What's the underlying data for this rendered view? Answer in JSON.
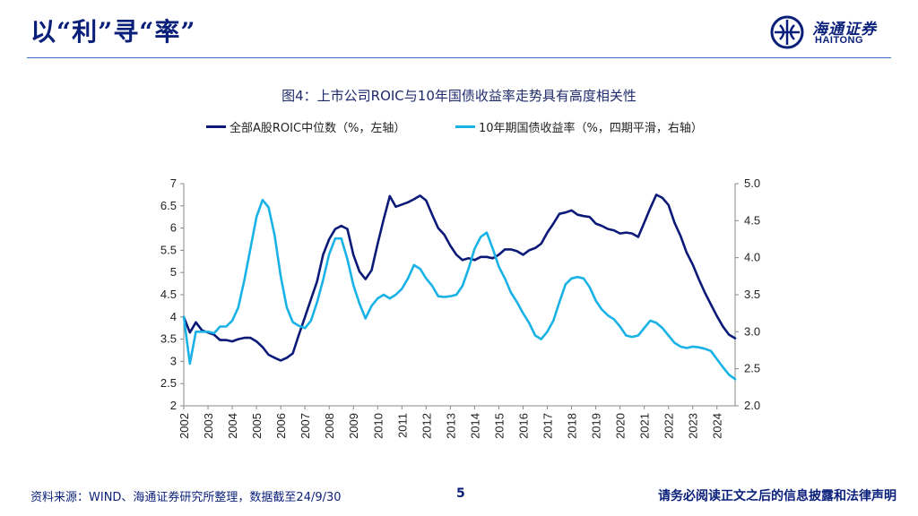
{
  "header": {
    "title": "以“利”寻“率”"
  },
  "logo": {
    "cn": "海通证券",
    "en": "HAITONG"
  },
  "footer": {
    "source": "资料来源：WIND、海通证券研究所整理，数据截至24/9/30",
    "page": "5",
    "disclaimer": "请务必阅读正文之后的信息披露和法律声明"
  },
  "colors": {
    "brand": "#0a1f7a",
    "roic": "#0b1a78",
    "bond": "#19b2e6"
  },
  "chart_data": {
    "type": "line",
    "title": "图4：上市公司ROIC与10年国债收益率走势具有高度相关性",
    "x_range": [
      2002.0,
      2024.75
    ],
    "x_tick_labels": [
      "2002",
      "2003",
      "2004",
      "2005",
      "2006",
      "2007",
      "2008",
      "2009",
      "2010",
      "2011",
      "2012",
      "2013",
      "2014",
      "2015",
      "2016",
      "2017",
      "2018",
      "2019",
      "2020",
      "2021",
      "2022",
      "2023",
      "2024"
    ],
    "y_left": {
      "range": [
        2,
        7
      ],
      "ticks": [
        "2",
        "2.5",
        "3",
        "3.5",
        "4",
        "4.5",
        "5",
        "5.5",
        "6",
        "6.5",
        "7"
      ]
    },
    "y_right": {
      "range": [
        2.0,
        5.0
      ],
      "ticks": [
        "2.0",
        "2.5",
        "3.0",
        "3.5",
        "4.0",
        "4.5",
        "5.0"
      ]
    },
    "grid": false,
    "legend_position": "top",
    "series": [
      {
        "name": "全部A股ROIC中位数（%，左轴）",
        "axis": "left",
        "points": [
          [
            2002.0,
            4.0
          ],
          [
            2002.25,
            3.65
          ],
          [
            2002.5,
            3.88
          ],
          [
            2002.75,
            3.7
          ],
          [
            2003.0,
            3.65
          ],
          [
            2003.25,
            3.6
          ],
          [
            2003.5,
            3.48
          ],
          [
            2003.75,
            3.48
          ],
          [
            2004.0,
            3.45
          ],
          [
            2004.25,
            3.5
          ],
          [
            2004.5,
            3.53
          ],
          [
            2004.75,
            3.53
          ],
          [
            2005.0,
            3.45
          ],
          [
            2005.25,
            3.32
          ],
          [
            2005.5,
            3.15
          ],
          [
            2005.75,
            3.08
          ],
          [
            2006.0,
            3.02
          ],
          [
            2006.25,
            3.08
          ],
          [
            2006.5,
            3.18
          ],
          [
            2006.75,
            3.6
          ],
          [
            2007.0,
            4.0
          ],
          [
            2007.25,
            4.4
          ],
          [
            2007.5,
            4.8
          ],
          [
            2007.75,
            5.4
          ],
          [
            2008.0,
            5.75
          ],
          [
            2008.25,
            5.98
          ],
          [
            2008.5,
            6.05
          ],
          [
            2008.75,
            5.98
          ],
          [
            2009.0,
            5.4
          ],
          [
            2009.25,
            5.02
          ],
          [
            2009.5,
            4.85
          ],
          [
            2009.75,
            5.05
          ],
          [
            2010.0,
            5.65
          ],
          [
            2010.25,
            6.2
          ],
          [
            2010.5,
            6.72
          ],
          [
            2010.75,
            6.48
          ],
          [
            2011.0,
            6.53
          ],
          [
            2011.25,
            6.58
          ],
          [
            2011.5,
            6.65
          ],
          [
            2011.75,
            6.73
          ],
          [
            2012.0,
            6.62
          ],
          [
            2012.25,
            6.3
          ],
          [
            2012.5,
            6.0
          ],
          [
            2012.75,
            5.85
          ],
          [
            2013.0,
            5.6
          ],
          [
            2013.25,
            5.4
          ],
          [
            2013.5,
            5.28
          ],
          [
            2013.75,
            5.32
          ],
          [
            2014.0,
            5.28
          ],
          [
            2014.25,
            5.35
          ],
          [
            2014.5,
            5.35
          ],
          [
            2014.75,
            5.32
          ],
          [
            2015.0,
            5.4
          ],
          [
            2015.25,
            5.52
          ],
          [
            2015.5,
            5.52
          ],
          [
            2015.75,
            5.48
          ],
          [
            2016.0,
            5.4
          ],
          [
            2016.25,
            5.5
          ],
          [
            2016.5,
            5.55
          ],
          [
            2016.75,
            5.65
          ],
          [
            2017.0,
            5.9
          ],
          [
            2017.25,
            6.1
          ],
          [
            2017.5,
            6.32
          ],
          [
            2017.75,
            6.35
          ],
          [
            2018.0,
            6.4
          ],
          [
            2018.25,
            6.3
          ],
          [
            2018.5,
            6.27
          ],
          [
            2018.75,
            6.25
          ],
          [
            2019.0,
            6.1
          ],
          [
            2019.25,
            6.05
          ],
          [
            2019.5,
            5.98
          ],
          [
            2019.75,
            5.95
          ],
          [
            2020.0,
            5.88
          ],
          [
            2020.25,
            5.9
          ],
          [
            2020.5,
            5.88
          ],
          [
            2020.75,
            5.8
          ],
          [
            2021.0,
            6.12
          ],
          [
            2021.25,
            6.45
          ],
          [
            2021.5,
            6.75
          ],
          [
            2021.75,
            6.68
          ],
          [
            2022.0,
            6.52
          ],
          [
            2022.25,
            6.12
          ],
          [
            2022.5,
            5.82
          ],
          [
            2022.75,
            5.45
          ],
          [
            2023.0,
            5.18
          ],
          [
            2023.25,
            4.85
          ],
          [
            2023.5,
            4.55
          ],
          [
            2023.75,
            4.28
          ],
          [
            2024.0,
            4.02
          ],
          [
            2024.25,
            3.78
          ],
          [
            2024.5,
            3.6
          ],
          [
            2024.75,
            3.52
          ]
        ]
      },
      {
        "name": "10年期国债收益率（%，四期平滑，右轴）",
        "axis": "right",
        "points": [
          [
            2002.0,
            3.2
          ],
          [
            2002.25,
            2.57
          ],
          [
            2002.5,
            3.0
          ],
          [
            2002.75,
            3.0
          ],
          [
            2003.0,
            3.0
          ],
          [
            2003.25,
            2.98
          ],
          [
            2003.5,
            3.07
          ],
          [
            2003.75,
            3.07
          ],
          [
            2004.0,
            3.15
          ],
          [
            2004.25,
            3.33
          ],
          [
            2004.5,
            3.7
          ],
          [
            2004.75,
            4.12
          ],
          [
            2005.0,
            4.55
          ],
          [
            2005.25,
            4.78
          ],
          [
            2005.5,
            4.68
          ],
          [
            2005.75,
            4.3
          ],
          [
            2006.0,
            3.75
          ],
          [
            2006.25,
            3.33
          ],
          [
            2006.5,
            3.13
          ],
          [
            2006.75,
            3.08
          ],
          [
            2007.0,
            3.05
          ],
          [
            2007.25,
            3.15
          ],
          [
            2007.5,
            3.4
          ],
          [
            2007.75,
            3.7
          ],
          [
            2008.0,
            4.05
          ],
          [
            2008.25,
            4.26
          ],
          [
            2008.5,
            4.26
          ],
          [
            2008.75,
            3.98
          ],
          [
            2009.0,
            3.63
          ],
          [
            2009.25,
            3.38
          ],
          [
            2009.5,
            3.18
          ],
          [
            2009.75,
            3.35
          ],
          [
            2010.0,
            3.45
          ],
          [
            2010.25,
            3.5
          ],
          [
            2010.5,
            3.45
          ],
          [
            2010.75,
            3.5
          ],
          [
            2011.0,
            3.58
          ],
          [
            2011.25,
            3.72
          ],
          [
            2011.5,
            3.9
          ],
          [
            2011.75,
            3.85
          ],
          [
            2012.0,
            3.72
          ],
          [
            2012.25,
            3.62
          ],
          [
            2012.5,
            3.48
          ],
          [
            2012.75,
            3.47
          ],
          [
            2013.0,
            3.48
          ],
          [
            2013.25,
            3.5
          ],
          [
            2013.5,
            3.62
          ],
          [
            2013.75,
            3.85
          ],
          [
            2014.0,
            4.12
          ],
          [
            2014.25,
            4.28
          ],
          [
            2014.5,
            4.34
          ],
          [
            2014.75,
            4.12
          ],
          [
            2015.0,
            3.88
          ],
          [
            2015.25,
            3.72
          ],
          [
            2015.5,
            3.53
          ],
          [
            2015.75,
            3.4
          ],
          [
            2016.0,
            3.25
          ],
          [
            2016.25,
            3.12
          ],
          [
            2016.5,
            2.95
          ],
          [
            2016.75,
            2.9
          ],
          [
            2017.0,
            3.0
          ],
          [
            2017.25,
            3.15
          ],
          [
            2017.5,
            3.4
          ],
          [
            2017.75,
            3.64
          ],
          [
            2018.0,
            3.72
          ],
          [
            2018.25,
            3.74
          ],
          [
            2018.5,
            3.72
          ],
          [
            2018.75,
            3.6
          ],
          [
            2019.0,
            3.42
          ],
          [
            2019.25,
            3.3
          ],
          [
            2019.5,
            3.22
          ],
          [
            2019.75,
            3.17
          ],
          [
            2020.0,
            3.07
          ],
          [
            2020.25,
            2.95
          ],
          [
            2020.5,
            2.93
          ],
          [
            2020.75,
            2.95
          ],
          [
            2021.0,
            3.05
          ],
          [
            2021.25,
            3.15
          ],
          [
            2021.5,
            3.12
          ],
          [
            2021.75,
            3.05
          ],
          [
            2022.0,
            2.95
          ],
          [
            2022.25,
            2.85
          ],
          [
            2022.5,
            2.8
          ],
          [
            2022.75,
            2.78
          ],
          [
            2023.0,
            2.8
          ],
          [
            2023.25,
            2.79
          ],
          [
            2023.5,
            2.77
          ],
          [
            2023.75,
            2.74
          ],
          [
            2024.0,
            2.63
          ],
          [
            2024.25,
            2.52
          ],
          [
            2024.5,
            2.42
          ],
          [
            2024.75,
            2.36
          ]
        ]
      }
    ]
  }
}
